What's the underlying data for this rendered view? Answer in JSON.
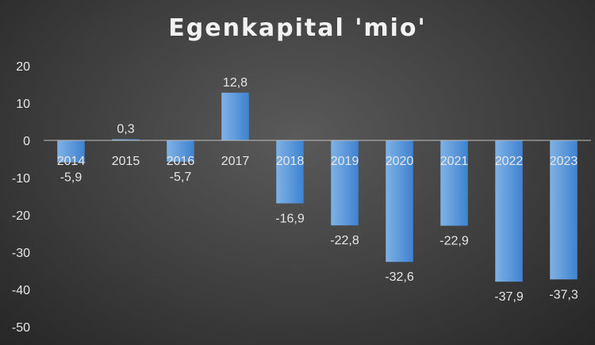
{
  "chart_data": {
    "type": "bar",
    "title": "Egenkapital 'mio'",
    "xlabel": "",
    "ylabel": "",
    "categories": [
      "2014",
      "2015",
      "2016",
      "2017",
      "2018",
      "2019",
      "2020",
      "2021",
      "2022",
      "2023"
    ],
    "values": [
      -5.9,
      0.3,
      -5.7,
      12.8,
      -16.9,
      -22.8,
      -32.6,
      -22.9,
      -37.9,
      -37.3
    ],
    "data_labels": [
      "-5,9",
      "0,3",
      "-5,7",
      "12,8",
      "-16,9",
      "-22,8",
      "-32,6",
      "-22,9",
      "-37,9",
      "-37,3"
    ],
    "ylim": [
      -50,
      20
    ],
    "yticks": [
      20,
      10,
      0,
      -10,
      -20,
      -30,
      -40,
      -50
    ],
    "ytick_labels": [
      "20",
      "10",
      "0",
      "-10",
      "-20",
      "-30",
      "-40",
      "-50"
    ],
    "grid": false,
    "legend": "none",
    "colors": {
      "bar_top": "#7fb2e6",
      "bar_bottom": "#3f82cf",
      "text": "#e6e6e6",
      "axis_line": "#bfbfbf"
    }
  }
}
